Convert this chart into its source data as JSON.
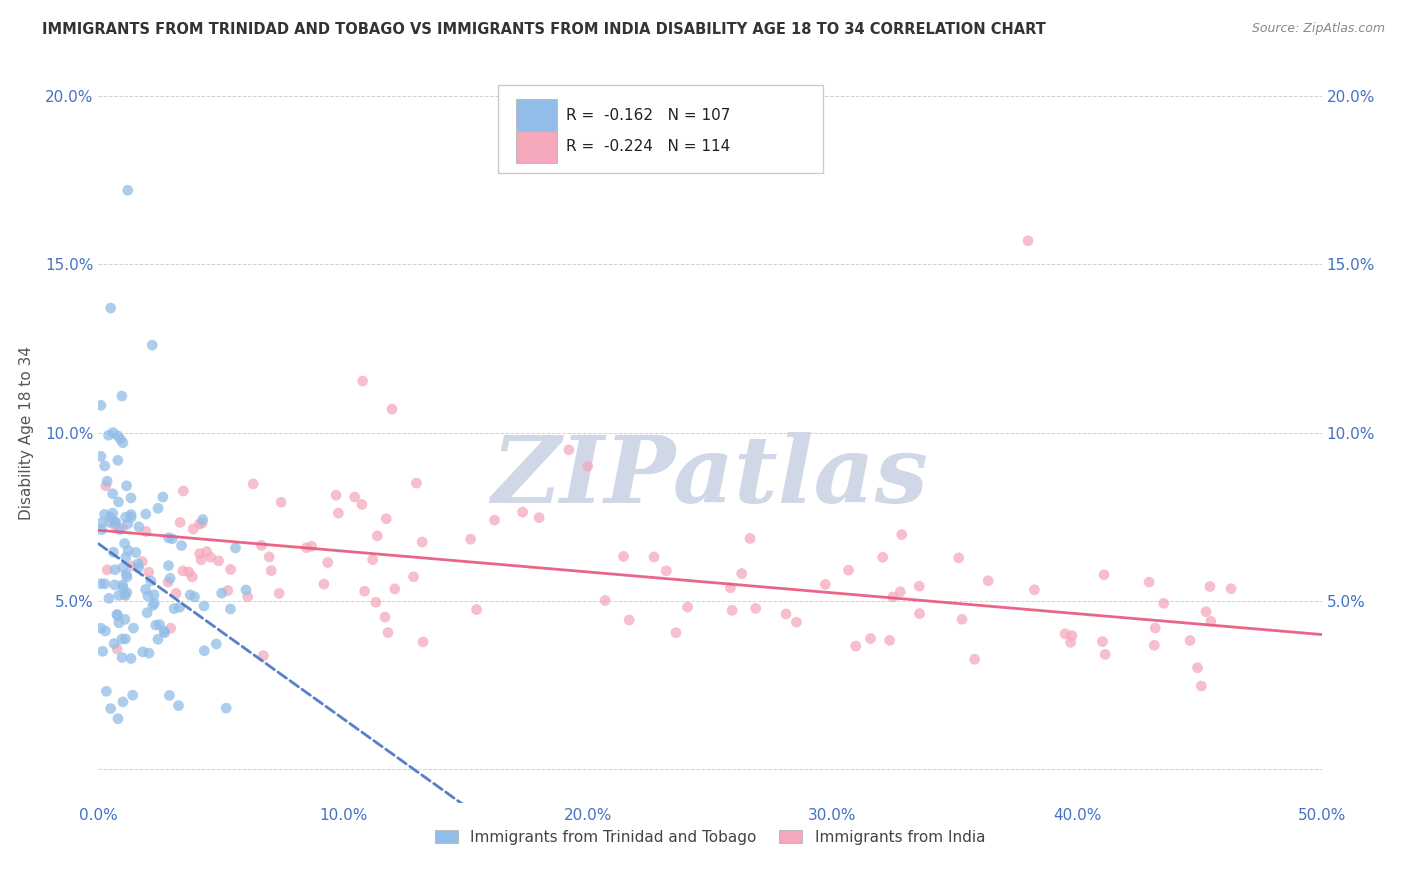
{
  "title": "IMMIGRANTS FROM TRINIDAD AND TOBAGO VS IMMIGRANTS FROM INDIA DISABILITY AGE 18 TO 34 CORRELATION CHART",
  "source": "Source: ZipAtlas.com",
  "ylabel": "Disability Age 18 to 34",
  "xlim": [
    0.0,
    0.5
  ],
  "ylim": [
    -0.01,
    0.21
  ],
  "series1_label": "Immigrants from Trinidad and Tobago",
  "series2_label": "Immigrants from India",
  "series1_R": "-0.162",
  "series1_N": "107",
  "series2_R": "-0.224",
  "series2_N": "114",
  "series1_color": "#92bde8",
  "series2_color": "#f5a8bc",
  "series1_line_color": "#4472c4",
  "series2_line_color": "#e8557a",
  "background_color": "#ffffff",
  "grid_color": "#cccccc",
  "watermark_color": "#d0d8e8",
  "title_color": "#333333",
  "tick_color": "#4472c4",
  "ylabel_color": "#555555",
  "source_color": "#888888",
  "legend_border_color": "#cccccc",
  "series1_line_slope": -0.52,
  "series1_line_intercept": 0.067,
  "series2_line_slope": -0.062,
  "series2_line_intercept": 0.071
}
